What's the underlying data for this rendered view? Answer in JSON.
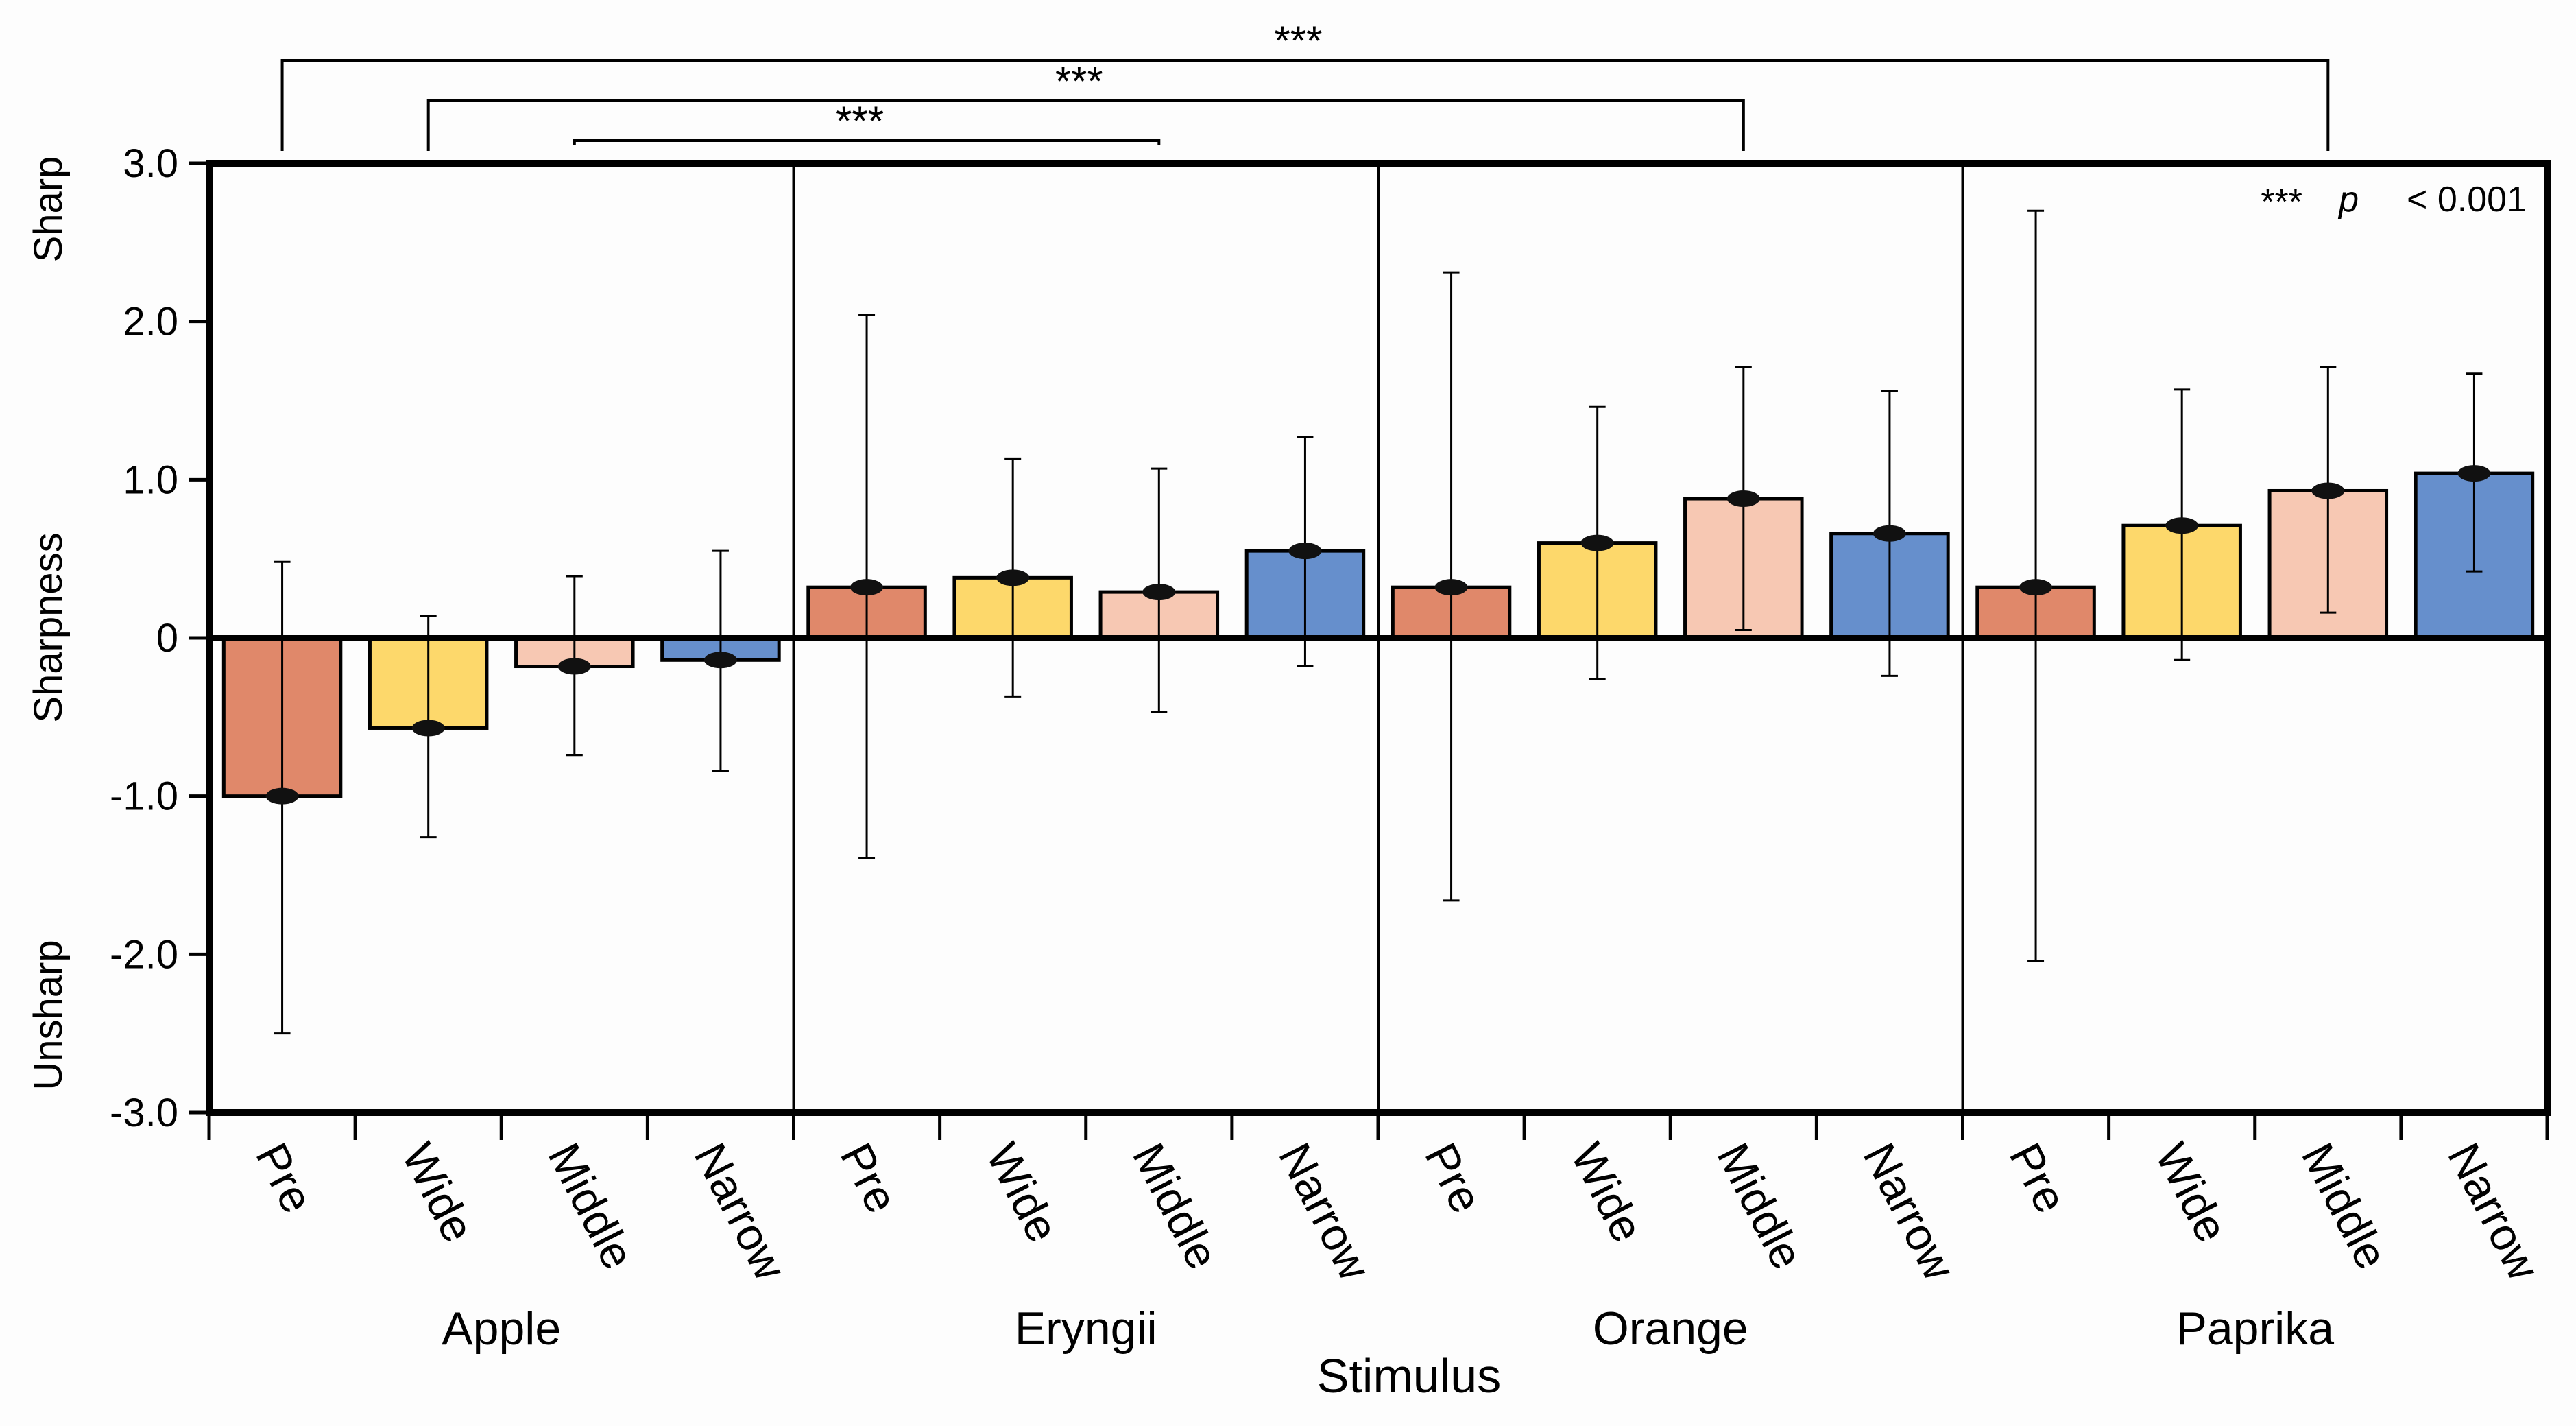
{
  "chart_data": {
    "type": "bar",
    "title": "",
    "xlabel": "Stimulus",
    "ylabel": "Sharpness",
    "ylabel_top": "Sharp",
    "ylabel_bottom": "Unsharp",
    "ylim": [
      -3.0,
      3.0
    ],
    "yticks": [
      {
        "value": 3.0,
        "label": "3.0"
      },
      {
        "value": 2.0,
        "label": "2.0"
      },
      {
        "value": 1.0,
        "label": "1.0"
      },
      {
        "value": 0,
        "label": "0"
      },
      {
        "value": -1.0,
        "label": "-1.0"
      },
      {
        "value": -2.0,
        "label": "-2.0"
      },
      {
        "value": -3.0,
        "label": "-3.0"
      }
    ],
    "conditions": [
      "Pre",
      "Wide",
      "Middle",
      "Narrow"
    ],
    "condition_colors": [
      "#e0886a",
      "#fdd86b",
      "#f7c8b3",
      "#668fcc"
    ],
    "groups": [
      {
        "name": "Apple",
        "values": [
          -1.0,
          -0.57,
          -0.18,
          -0.14
        ],
        "err_low": [
          -2.5,
          -1.26,
          -0.74,
          -0.84
        ],
        "err_high": [
          0.48,
          0.14,
          0.39,
          0.55
        ]
      },
      {
        "name": "Eryngii",
        "values": [
          0.32,
          0.38,
          0.29,
          0.55
        ],
        "err_low": [
          -1.39,
          -0.37,
          -0.47,
          -0.18
        ],
        "err_high": [
          2.04,
          1.13,
          1.07,
          1.27
        ]
      },
      {
        "name": "Orange",
        "values": [
          0.32,
          0.6,
          0.88,
          0.66
        ],
        "err_low": [
          -1.66,
          -0.26,
          0.05,
          -0.24
        ],
        "err_high": [
          2.31,
          1.46,
          1.71,
          1.56
        ]
      },
      {
        "name": "Paprika",
        "values": [
          0.32,
          0.71,
          0.93,
          1.04
        ],
        "err_low": [
          -2.04,
          -0.14,
          0.16,
          0.42
        ],
        "err_high": [
          2.7,
          1.57,
          1.71,
          1.67
        ]
      }
    ],
    "significance": [
      {
        "from_bar": 2,
        "to_bar": 6,
        "label": "***"
      },
      {
        "from_bar": 1,
        "to_bar": 10,
        "label": "***"
      },
      {
        "from_bar": 0,
        "to_bar": 14,
        "label": "***"
      }
    ],
    "legend_note": {
      "stars": "***",
      "p": "p",
      "text": "< 0.001"
    }
  }
}
